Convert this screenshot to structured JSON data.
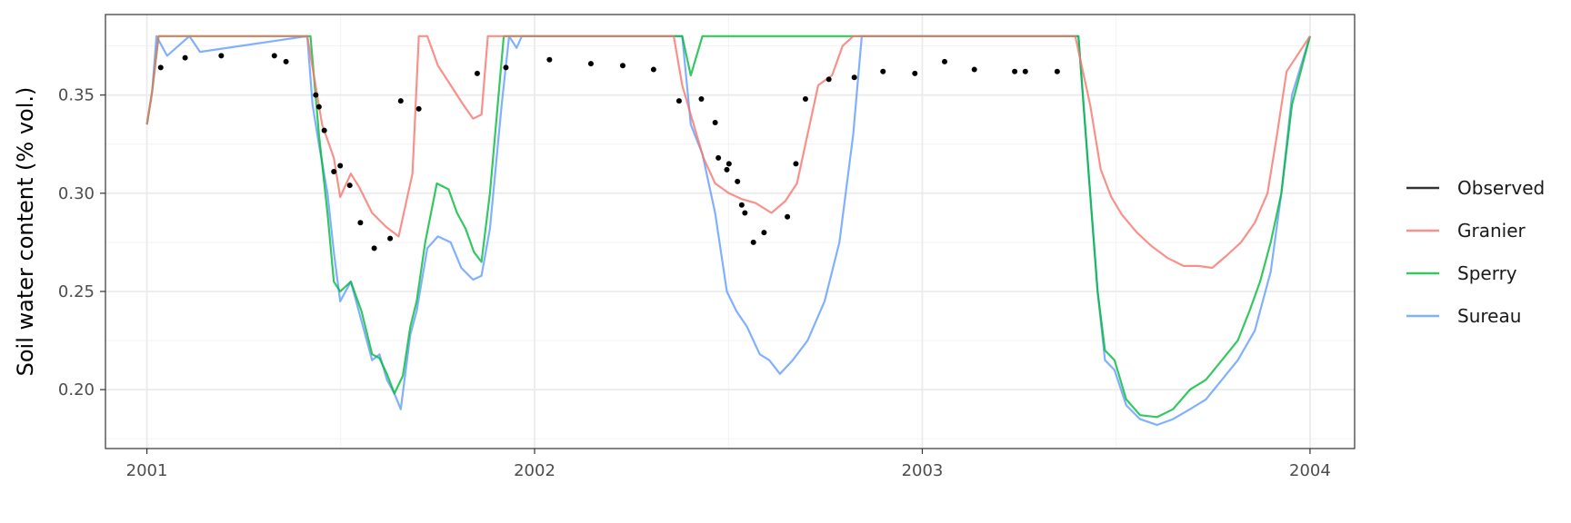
{
  "chart_data": {
    "type": "line",
    "title": "",
    "xlabel": "",
    "ylabel": "Soil water content (% vol.)",
    "xlim": [
      "2000-11-23",
      "2004-02-12"
    ],
    "ylim": [
      0.17,
      0.391
    ],
    "x_ticks": [
      "2001-01-01",
      "2002-01-01",
      "2003-01-01",
      "2004-01-01"
    ],
    "x_tick_labels": [
      "2001",
      "2002",
      "2003",
      "2004"
    ],
    "y_ticks": [
      0.2,
      0.25,
      0.3,
      0.35
    ],
    "y_tick_labels": [
      "0.20",
      "0.25",
      "0.30",
      "0.35"
    ],
    "grid": true,
    "legend_position": "right",
    "series": [
      {
        "name": "Observed",
        "color": "#333333",
        "kind": "points",
        "x": [
          "2001-01-14",
          "2001-02-06",
          "2001-03-12",
          "2001-05-01",
          "2001-05-12",
          "2001-06-09",
          "2001-06-12",
          "2001-06-17",
          "2001-06-26",
          "2001-07-02",
          "2001-07-11",
          "2001-07-21",
          "2001-08-03",
          "2001-08-18",
          "2001-08-28",
          "2001-09-14",
          "2001-11-08",
          "2001-12-05",
          "2002-01-15",
          "2002-02-23",
          "2002-03-25",
          "2002-04-23",
          "2002-05-17",
          "2002-06-07",
          "2002-06-20",
          "2002-06-23",
          "2002-07-01",
          "2002-07-03",
          "2002-07-11",
          "2002-07-15",
          "2002-07-18",
          "2002-07-26",
          "2002-08-05",
          "2002-08-27",
          "2002-09-04",
          "2002-09-13",
          "2002-10-05",
          "2002-10-29",
          "2002-11-25",
          "2002-12-25",
          "2003-01-22",
          "2003-02-19",
          "2003-03-29",
          "2003-04-08",
          "2003-05-08"
        ],
        "y": [
          0.364,
          0.369,
          0.37,
          0.37,
          0.367,
          0.35,
          0.344,
          0.332,
          0.311,
          0.314,
          0.304,
          0.285,
          0.272,
          0.277,
          0.347,
          0.343,
          0.361,
          0.364,
          0.368,
          0.366,
          0.365,
          0.363,
          0.347,
          0.348,
          0.336,
          0.318,
          0.312,
          0.315,
          0.306,
          0.294,
          0.29,
          0.275,
          0.28,
          0.288,
          0.315,
          0.348,
          0.358,
          0.359,
          0.362,
          0.361,
          0.367,
          0.363,
          0.362,
          0.362,
          0.362
        ]
      },
      {
        "name": "Granier",
        "color": "#F8766D",
        "kind": "line",
        "x": [
          "2001-01-01",
          "2001-01-06",
          "2001-01-12",
          "2001-06-01",
          "2001-06-15",
          "2001-06-26",
          "2001-07-02",
          "2001-07-12",
          "2001-07-20",
          "2001-08-01",
          "2001-08-14",
          "2001-08-26",
          "2001-09-08",
          "2001-09-14",
          "2001-09-22",
          "2001-10-02",
          "2001-10-14",
          "2001-10-26",
          "2001-11-04",
          "2001-11-12",
          "2001-11-18",
          "2001-12-01",
          "2002-05-12",
          "2002-05-20",
          "2002-05-28",
          "2002-06-09",
          "2002-06-20",
          "2002-07-03",
          "2002-07-15",
          "2002-07-28",
          "2002-08-12",
          "2002-08-25",
          "2002-09-05",
          "2002-09-15",
          "2002-09-25",
          "2002-10-08",
          "2002-10-18",
          "2002-10-28",
          "2002-11-05",
          "2003-05-25",
          "2003-06-08",
          "2003-06-18",
          "2003-06-28",
          "2003-07-08",
          "2003-07-22",
          "2003-08-05",
          "2003-08-20",
          "2003-09-04",
          "2003-09-18",
          "2003-10-01",
          "2003-10-14",
          "2003-10-28",
          "2003-11-10",
          "2003-11-22",
          "2003-12-01",
          "2003-12-10",
          "2004-01-01"
        ],
        "y": [
          0.335,
          0.352,
          0.38,
          0.38,
          0.335,
          0.318,
          0.298,
          0.31,
          0.303,
          0.29,
          0.283,
          0.278,
          0.31,
          0.38,
          0.38,
          0.365,
          0.355,
          0.345,
          0.338,
          0.34,
          0.38,
          0.38,
          0.38,
          0.355,
          0.34,
          0.318,
          0.305,
          0.3,
          0.297,
          0.295,
          0.29,
          0.296,
          0.305,
          0.33,
          0.355,
          0.36,
          0.375,
          0.38,
          0.38,
          0.38,
          0.345,
          0.312,
          0.298,
          0.289,
          0.28,
          0.273,
          0.267,
          0.263,
          0.263,
          0.262,
          0.268,
          0.275,
          0.285,
          0.3,
          0.33,
          0.362,
          0.38
        ]
      },
      {
        "name": "Sperry",
        "color": "#00BA38",
        "kind": "line",
        "x": [
          "2001-01-01",
          "2001-01-06",
          "2001-01-12",
          "2001-06-04",
          "2001-06-12",
          "2001-06-20",
          "2001-06-26",
          "2001-07-02",
          "2001-07-12",
          "2001-07-22",
          "2001-08-01",
          "2001-08-08",
          "2001-08-15",
          "2001-08-22",
          "2001-08-30",
          "2001-09-06",
          "2001-09-12",
          "2001-09-20",
          "2001-10-01",
          "2001-10-12",
          "2001-10-20",
          "2001-10-28",
          "2001-11-05",
          "2001-11-12",
          "2001-11-20",
          "2001-12-03",
          "2001-12-20",
          "2002-05-20",
          "2002-05-28",
          "2002-06-08",
          "2002-11-01",
          "2003-05-28",
          "2003-06-08",
          "2003-06-15",
          "2003-06-22",
          "2003-07-01",
          "2003-07-12",
          "2003-07-25",
          "2003-08-10",
          "2003-08-25",
          "2003-09-10",
          "2003-09-25",
          "2003-10-10",
          "2003-10-25",
          "2003-11-05",
          "2003-11-15",
          "2003-11-25",
          "2003-12-05",
          "2003-12-15",
          "2004-01-01"
        ],
        "y": [
          0.335,
          0.352,
          0.38,
          0.38,
          0.33,
          0.29,
          0.255,
          0.25,
          0.255,
          0.24,
          0.218,
          0.216,
          0.208,
          0.198,
          0.207,
          0.232,
          0.245,
          0.275,
          0.305,
          0.302,
          0.29,
          0.282,
          0.27,
          0.265,
          0.3,
          0.38,
          0.38,
          0.38,
          0.36,
          0.38,
          0.38,
          0.38,
          0.3,
          0.25,
          0.22,
          0.215,
          0.195,
          0.187,
          0.186,
          0.19,
          0.2,
          0.205,
          0.215,
          0.225,
          0.24,
          0.255,
          0.275,
          0.3,
          0.345,
          0.38
        ]
      },
      {
        "name": "Sureau",
        "color": "#619CFF",
        "kind": "line",
        "x": [
          "2001-01-01",
          "2001-01-06",
          "2001-01-10",
          "2001-01-20",
          "2001-02-10",
          "2001-02-20",
          "2001-06-01",
          "2001-06-06",
          "2001-06-12",
          "2001-06-20",
          "2001-06-26",
          "2001-07-02",
          "2001-07-12",
          "2001-07-22",
          "2001-08-01",
          "2001-08-08",
          "2001-08-15",
          "2001-08-22",
          "2001-08-28",
          "2001-09-06",
          "2001-09-12",
          "2001-09-22",
          "2001-10-02",
          "2001-10-14",
          "2001-10-24",
          "2001-11-04",
          "2001-11-12",
          "2001-11-20",
          "2001-12-01",
          "2001-12-08",
          "2001-12-15",
          "2001-12-20",
          "2002-05-20",
          "2002-05-28",
          "2002-06-08",
          "2002-06-20",
          "2002-07-01",
          "2002-07-10",
          "2002-07-20",
          "2002-08-01",
          "2002-08-10",
          "2002-08-20",
          "2002-09-01",
          "2002-09-15",
          "2002-10-01",
          "2002-10-15",
          "2002-10-28",
          "2002-11-05",
          "2003-05-28",
          "2003-06-08",
          "2003-06-15",
          "2003-06-22",
          "2003-07-01",
          "2003-07-12",
          "2003-07-25",
          "2003-08-10",
          "2003-08-25",
          "2003-09-10",
          "2003-09-25",
          "2003-10-10",
          "2003-10-25",
          "2003-11-10",
          "2003-11-25",
          "2003-12-05",
          "2003-12-15",
          "2004-01-01"
        ],
        "y": [
          0.335,
          0.352,
          0.38,
          0.37,
          0.38,
          0.372,
          0.38,
          0.345,
          0.325,
          0.3,
          0.27,
          0.245,
          0.255,
          0.235,
          0.215,
          0.218,
          0.205,
          0.198,
          0.19,
          0.228,
          0.24,
          0.272,
          0.278,
          0.275,
          0.262,
          0.256,
          0.258,
          0.282,
          0.345,
          0.38,
          0.374,
          0.38,
          0.38,
          0.335,
          0.32,
          0.29,
          0.25,
          0.24,
          0.232,
          0.218,
          0.215,
          0.208,
          0.215,
          0.225,
          0.245,
          0.275,
          0.33,
          0.38,
          0.38,
          0.3,
          0.25,
          0.215,
          0.21,
          0.192,
          0.185,
          0.182,
          0.185,
          0.19,
          0.195,
          0.205,
          0.215,
          0.23,
          0.26,
          0.3,
          0.35,
          0.38
        ]
      }
    ]
  }
}
